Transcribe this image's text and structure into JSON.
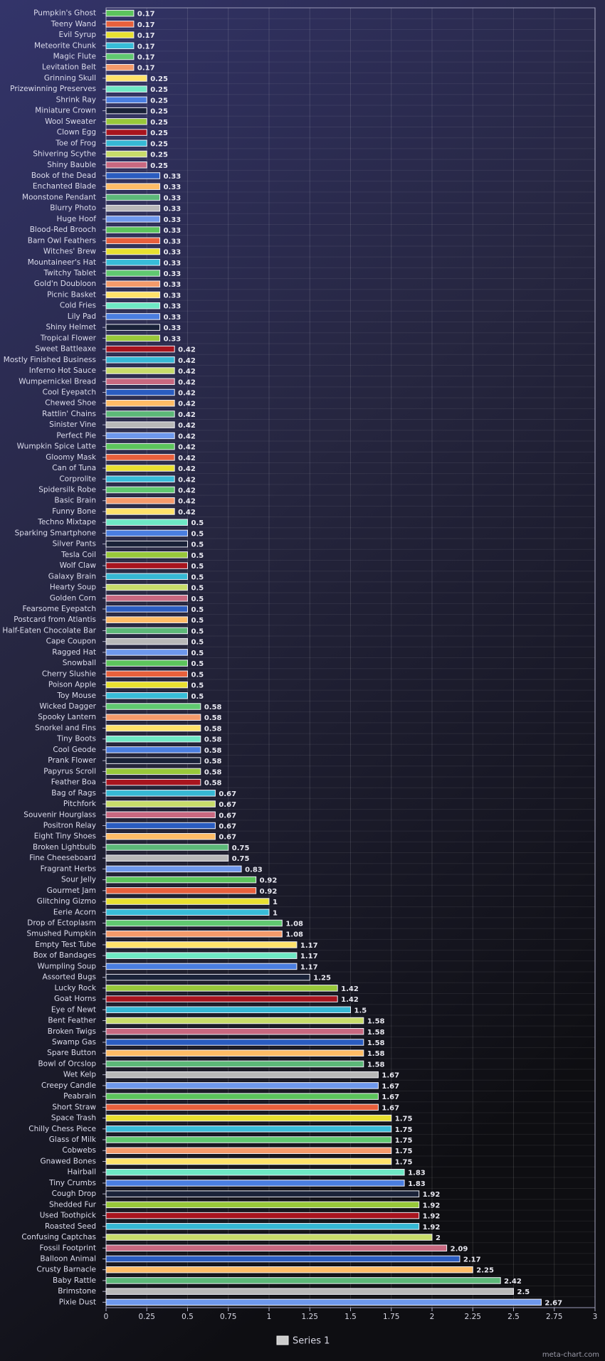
{
  "chart_data": {
    "type": "hbar",
    "categories": [
      "Pumpkin's Ghost",
      "Teeny Wand",
      "Evil Syrup",
      "Meteorite Chunk",
      "Magic Flute",
      "Levitation Belt",
      "Grinning Skull",
      "Prizewinning Preserves",
      "Shrink Ray",
      "Miniature Crown",
      "Wool Sweater",
      "Clown Egg",
      "Toe of Frog",
      "Shivering Scythe",
      "Shiny Bauble",
      "Book of the Dead",
      "Enchanted Blade",
      "Moonstone Pendant",
      "Blurry Photo",
      "Huge Hoof",
      "Blood-Red Brooch",
      "Barn Owl Feathers",
      "Witches' Brew",
      "Mountaineer's Hat",
      "Twitchy Tablet",
      "Gold'n Doubloon",
      "Picnic Basket",
      "Cold Fries",
      "Lily Pad",
      "Shiny Helmet",
      "Tropical Flower",
      "Sweet Battleaxe",
      "Mostly Finished Business",
      "Inferno Hot Sauce",
      "Wumpernickel Bread",
      "Cool Eyepatch",
      "Chewed Shoe",
      "Rattlin' Chains",
      "Sinister Vine",
      "Perfect Pie",
      "Wumpkin Spice Latte",
      "Gloomy Mask",
      "Can of Tuna",
      "Corprolite",
      "Spidersilk Robe",
      "Basic Brain",
      "Funny Bone",
      "Techno Mixtape",
      "Sparking Smartphone",
      "Silver Pants",
      "Tesla Coil",
      "Wolf Claw",
      "Galaxy Brain",
      "Hearty Soup",
      "Golden Corn",
      "Fearsome Eyepatch",
      "Postcard from Atlantis",
      "Half-Eaten Chocolate Bar",
      "Cape Coupon",
      "Ragged Hat",
      "Snowball",
      "Cherry Slushie",
      "Poison Apple",
      "Toy Mouse",
      "Wicked Dagger",
      "Spooky Lantern",
      "Snorkel and Fins",
      "Tiny Boots",
      "Cool Geode",
      "Prank Flower",
      "Papyrus Scroll",
      "Feather Boa",
      "Bag of Rags",
      "Pitchfork",
      "Souvenir Hourglass",
      "Positron Relay",
      "Eight Tiny Shoes",
      "Broken Lightbulb",
      "Fine Cheeseboard",
      "Fragrant Herbs",
      "Sour Jelly",
      "Gourmet Jam",
      "Glitching Gizmo",
      "Eerie Acorn",
      "Drop of Ectoplasm",
      "Smushed Pumpkin",
      "Empty Test Tube",
      "Box of Bandages",
      "Wumpling Soup",
      "Assorted Bugs",
      "Lucky Rock",
      "Goat Horns",
      "Eye of Newt",
      "Bent Feather",
      "Broken Twigs",
      "Swamp Gas",
      "Spare Button",
      "Bowl of Orcslop",
      "Wet Kelp",
      "Creepy Candle",
      "Peabrain",
      "Short Straw",
      "Space Trash",
      "Chilly Chess Piece",
      "Glass of Milk",
      "Cobwebs",
      "Gnawed Bones",
      "Hairball",
      "Tiny Crumbs",
      "Cough Drop",
      "Shedded Fur",
      "Used Toothpick",
      "Roasted Seed",
      "Confusing Captchas",
      "Fossil Footprint",
      "Balloon Animal",
      "Crusty Barnacle",
      "Baby Rattle",
      "Brimstone",
      "Pixie Dust"
    ],
    "series": [
      {
        "name": "Series 1",
        "color": "#cccccc",
        "values": [
          0.17,
          0.17,
          0.17,
          0.17,
          0.17,
          0.17,
          0.25,
          0.25,
          0.25,
          0.25,
          0.25,
          0.25,
          0.25,
          0.25,
          0.25,
          0.33,
          0.33,
          0.33,
          0.33,
          0.33,
          0.33,
          0.33,
          0.33,
          0.33,
          0.33,
          0.33,
          0.33,
          0.33,
          0.33,
          0.33,
          0.33,
          0.42,
          0.42,
          0.42,
          0.42,
          0.42,
          0.42,
          0.42,
          0.42,
          0.42,
          0.42,
          0.42,
          0.42,
          0.42,
          0.42,
          0.42,
          0.42,
          0.5,
          0.5,
          0.5,
          0.5,
          0.5,
          0.5,
          0.5,
          0.5,
          0.5,
          0.5,
          0.5,
          0.5,
          0.5,
          0.5,
          0.5,
          0.5,
          0.5,
          0.58,
          0.58,
          0.58,
          0.58,
          0.58,
          0.58,
          0.58,
          0.58,
          0.67,
          0.67,
          0.67,
          0.67,
          0.67,
          0.75,
          0.75,
          0.83,
          0.92,
          0.92,
          1,
          1,
          1.08,
          1.08,
          1.17,
          1.17,
          1.17,
          1.25,
          1.42,
          1.42,
          1.5,
          1.58,
          1.58,
          1.58,
          1.58,
          1.58,
          1.67,
          1.67,
          1.67,
          1.67,
          1.75,
          1.75,
          1.75,
          1.75,
          1.75,
          1.83,
          1.83,
          1.92,
          1.92,
          1.92,
          1.92,
          2,
          2.09,
          2.17,
          2.25,
          2.42,
          2.5,
          2.67
        ]
      }
    ],
    "bar_colors": [
      "#5cc45c",
      "#e8603c",
      "#e8e030",
      "#38bcd8",
      "#60c870",
      "#f59a6a",
      "#ffe26a",
      "#6ee8c4",
      "#4a7ee0",
      "#1a2238",
      "#98c83a",
      "#a8141e",
      "#36b8d4",
      "#c8dc6a",
      "#c86880",
      "#2a5cc0",
      "#ffbc66",
      "#5cb878",
      "#b8b8b8",
      "#6e98ec"
    ],
    "xlim": [
      0,
      3
    ],
    "xticks": [
      0,
      0.25,
      0.5,
      0.75,
      1,
      1.25,
      1.5,
      1.75,
      2,
      2.25,
      2.5,
      2.75,
      3
    ],
    "grid": true,
    "legend": "bottom",
    "watermark": "meta-chart.com"
  }
}
